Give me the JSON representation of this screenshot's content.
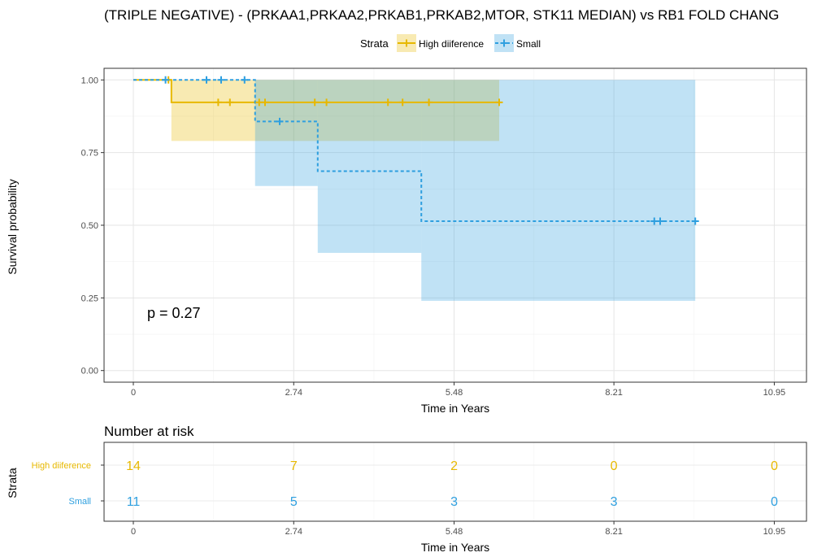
{
  "chart_data": {
    "type": "line",
    "subtype": "kaplan-meier",
    "title": "(TRIPLE NEGATIVE) - (PRKAA1,PRKAA2,PRKAB1,PRKAB2,MTOR, STK11 MEDIAN) vs RB1 FOLD CHANG",
    "xlabel": "Time in Years",
    "ylabel": "Survival probability",
    "xlim": [
      -0.5,
      11.5
    ],
    "ylim": [
      -0.04,
      1.04
    ],
    "x_ticks": [
      0,
      2.74,
      5.48,
      8.21,
      10.95
    ],
    "x_tick_labels": [
      "0",
      "2.74",
      "5.48",
      "8.21",
      "10.95"
    ],
    "y_ticks": [
      0,
      0.25,
      0.5,
      0.75,
      1.0
    ],
    "y_tick_labels": [
      "0.00",
      "0.25",
      "0.50",
      "0.75",
      "1.00"
    ],
    "grid": true,
    "legend": {
      "title": "Strata",
      "position": "top",
      "entries": [
        "High diiference",
        "Small"
      ]
    },
    "annotation": "p = 0.27",
    "series": [
      {
        "name": "High diiference",
        "color": "#E7B800",
        "linestyle": "solid",
        "steps": [
          [
            0,
            1.0
          ],
          [
            0.65,
            0.923
          ],
          [
            6.25,
            0.923
          ]
        ],
        "ci": [
          [
            0,
            1.0,
            1.0
          ],
          [
            0.65,
            0.79,
            1.0
          ],
          [
            6.25,
            0.79,
            1.0
          ]
        ],
        "censor": [
          [
            0.6,
            1.0
          ],
          [
            1.45,
            0.923
          ],
          [
            1.65,
            0.923
          ],
          [
            2.15,
            0.923
          ],
          [
            2.25,
            0.923
          ],
          [
            3.1,
            0.923
          ],
          [
            3.3,
            0.923
          ],
          [
            4.35,
            0.923
          ],
          [
            4.6,
            0.923
          ],
          [
            5.05,
            0.923
          ],
          [
            6.25,
            0.923
          ]
        ]
      },
      {
        "name": "Small",
        "color": "#2E9FDF",
        "linestyle": "dashed",
        "steps": [
          [
            0,
            1.0
          ],
          [
            2.08,
            0.857
          ],
          [
            3.15,
            0.686
          ],
          [
            4.92,
            0.514
          ],
          [
            9.6,
            0.514
          ]
        ],
        "ci": [
          [
            0,
            1.0,
            1.0
          ],
          [
            2.08,
            0.635,
            1.0
          ],
          [
            3.15,
            0.405,
            1.0
          ],
          [
            4.92,
            0.24,
            1.0
          ],
          [
            9.6,
            0.24,
            1.0
          ]
        ],
        "censor": [
          [
            0.55,
            1.0
          ],
          [
            1.25,
            1.0
          ],
          [
            1.5,
            1.0
          ],
          [
            1.9,
            1.0
          ],
          [
            2.5,
            0.857
          ],
          [
            8.9,
            0.514
          ],
          [
            9.0,
            0.514
          ],
          [
            9.6,
            0.514
          ]
        ]
      }
    ]
  },
  "risk_table": {
    "title": "Number at risk",
    "ylabel": "Strata",
    "xlabel": "Time in Years",
    "x_ticks": [
      0,
      2.74,
      5.48,
      8.21,
      10.95
    ],
    "x_tick_labels": [
      "0",
      "2.74",
      "5.48",
      "8.21",
      "10.95"
    ],
    "rows": [
      {
        "label": "High diiference",
        "color": "#E7B800",
        "values": [
          "14",
          "7",
          "2",
          "0",
          "0"
        ]
      },
      {
        "label": "Small",
        "color": "#2E9FDF",
        "values": [
          "11",
          "5",
          "3",
          "3",
          "0"
        ]
      }
    ]
  }
}
